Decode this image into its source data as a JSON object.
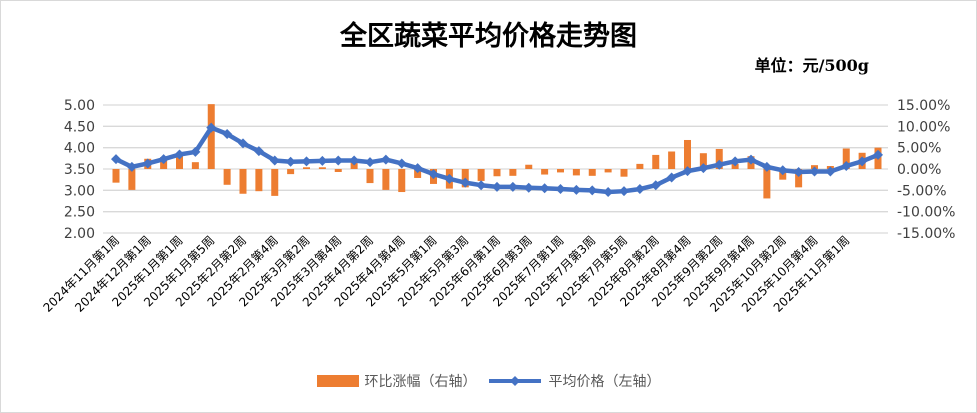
{
  "title": "全区蔬菜平均价格走势图",
  "unit": "单位：元/500g",
  "colors": {
    "bar": "#ed7d31",
    "line": "#4472c4",
    "grid": "#d9d9d9"
  },
  "left_axis_ticks": [
    "5.00",
    "4.50",
    "4.00",
    "3.50",
    "3.00",
    "2.50",
    "2.00"
  ],
  "right_axis_ticks": [
    "15.00%",
    "10.00%",
    "5.00%",
    "0.00%",
    "-5.00%",
    "-10.00%",
    "-15.00%"
  ],
  "legend": {
    "bar_label": "环比涨幅（右轴）",
    "line_label": "平均价格（左轴）"
  },
  "chart_data": {
    "type": "bar+line",
    "title": "全区蔬菜平均价格走势图",
    "subtitle": "单位：元/500g",
    "x_labels": [
      "2024年11月第1周",
      "2024年12月第1周",
      "2025年1月第1周",
      "2025年1月第5周",
      "2025年2月第2周",
      "2025年2月第4周",
      "2025年3月第2周",
      "2025年3月第4周",
      "2025年4月第2周",
      "2025年4月第4周",
      "2025年5月第1周",
      "2025年5月第3周",
      "2025年6月第1周",
      "2025年6月第3周",
      "2025年7月第1周",
      "2025年7月第3周",
      "2025年7月第5周",
      "2025年8月第2周",
      "2025年8月第4周",
      "2025年9月第2周",
      "2025年9月第4周",
      "2025年10月第2周",
      "2025年10月第4周",
      "2025年11月第1周"
    ],
    "label_every": 2,
    "left_ylim": [
      2.0,
      5.0
    ],
    "right_ylim": [
      -15.0,
      15.0
    ],
    "series": [
      {
        "name": "平均价格（左轴）",
        "type": "line",
        "axis": "left",
        "values": [
          3.73,
          3.55,
          3.63,
          3.73,
          3.84,
          3.9,
          4.47,
          4.32,
          4.1,
          3.92,
          3.7,
          3.67,
          3.68,
          3.69,
          3.7,
          3.7,
          3.66,
          3.72,
          3.63,
          3.52,
          3.38,
          3.27,
          3.18,
          3.12,
          3.08,
          3.08,
          3.06,
          3.05,
          3.03,
          3.01,
          3.0,
          2.96,
          2.98,
          3.03,
          3.12,
          3.3,
          3.45,
          3.52,
          3.6,
          3.68,
          3.72,
          3.55,
          3.47,
          3.43,
          3.44,
          3.44,
          3.57,
          3.68,
          3.83
        ]
      },
      {
        "name": "环比涨幅（右轴）",
        "type": "bar",
        "axis": "right",
        "values": [
          -3.2,
          -4.9,
          2.4,
          2.8,
          3.8,
          1.6,
          15.2,
          -3.7,
          -5.8,
          -5.2,
          -6.3,
          -1.2,
          0.4,
          0.4,
          -0.7,
          1.8,
          -3.3,
          -4.9,
          -5.4,
          -2.1,
          -3.5,
          -4.6,
          -4.3,
          -2.8,
          -1.7,
          -1.6,
          1.0,
          -1.3,
          -0.8,
          -1.5,
          -1.6,
          -0.8,
          -1.8,
          1.2,
          3.3,
          4.1,
          6.8,
          3.7,
          4.7,
          1.2,
          3.0,
          -6.9,
          -2.5,
          -4.3,
          0.9,
          0.7,
          4.8,
          3.8,
          5.0
        ]
      }
    ]
  }
}
